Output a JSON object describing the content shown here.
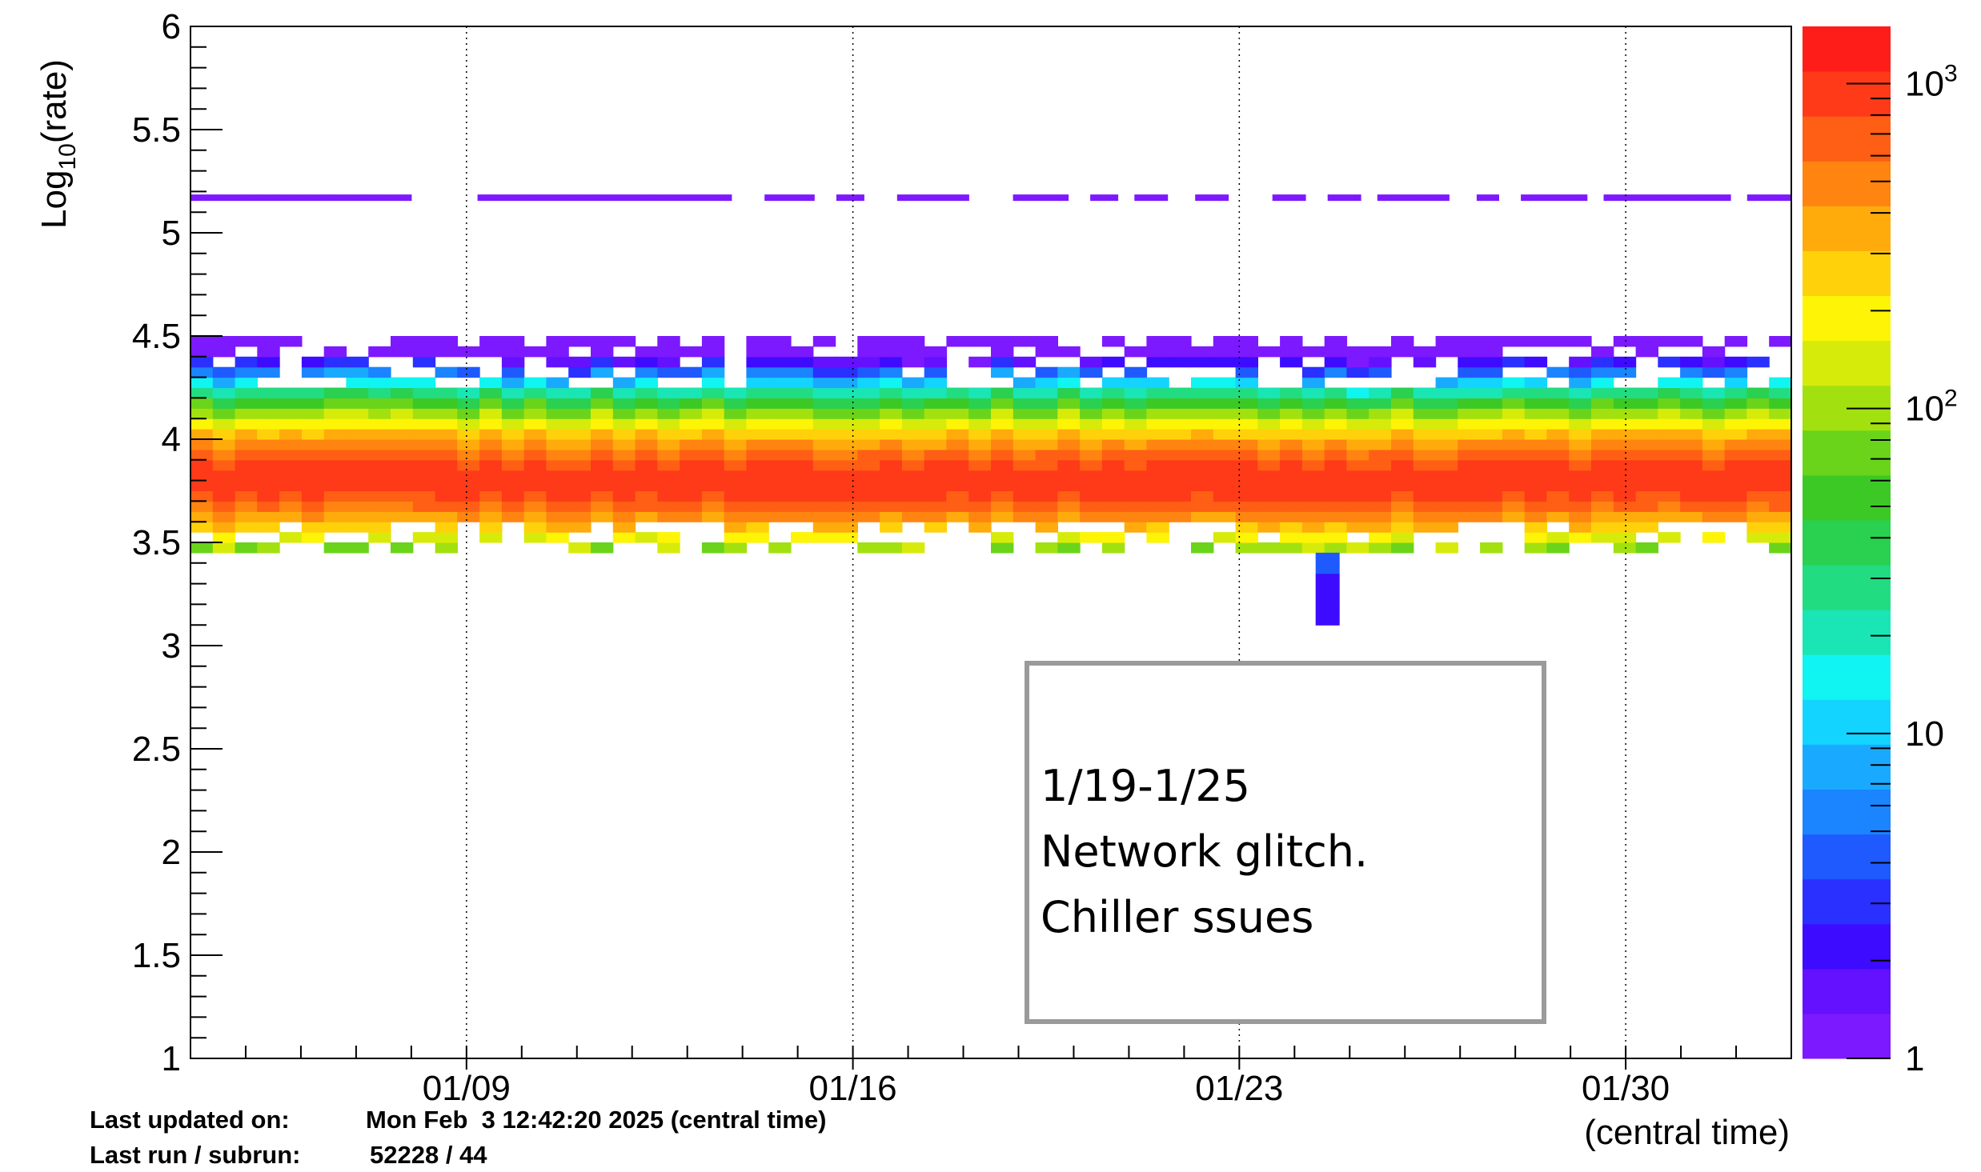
{
  "chart_data": {
    "type": "heatmap",
    "title": "",
    "xlabel": "(central time)",
    "ylabel": "Log10(rate)",
    "ylabel_parts": {
      "base": "Log",
      "sub": "10",
      "rest": "(rate)"
    },
    "x_axis": {
      "type": "date",
      "range": [
        "2025-01-04",
        "2025-02-02"
      ],
      "tick_labels": [
        "01/09",
        "01/16",
        "01/23",
        "01/30"
      ],
      "tick_dates": [
        "2025-01-09",
        "2025-01-16",
        "2025-01-23",
        "2025-01-30"
      ],
      "grid": "vertical dotted at labeled ticks"
    },
    "y_axis": {
      "range": [
        1,
        6
      ],
      "tick_labels": [
        "1",
        "1.5",
        "2",
        "2.5",
        "3",
        "3.5",
        "4",
        "4.5",
        "5",
        "5.5",
        "6"
      ]
    },
    "z_axis": {
      "scale": "log",
      "range": [
        1,
        1500
      ],
      "tick_labels": [
        "1",
        "10",
        "10^2",
        "10^3"
      ],
      "colormap": "rainbow",
      "colors": [
        "#7d19ff",
        "#6311ff",
        "#3d0bff",
        "#2a30ff",
        "#1f5aff",
        "#1b84ff",
        "#19aaff",
        "#13d4ff",
        "#10f5f2",
        "#19e6b4",
        "#22dc82",
        "#2ad050",
        "#3cc926",
        "#6ad41a",
        "#a2e10f",
        "#d7eb0a",
        "#fef405",
        "#ffd10a",
        "#ffab0c",
        "#ff8410",
        "#ff5f14",
        "#ff3a18",
        "#ff1d1a"
      ]
    },
    "series": [
      {
        "name": "",
        "description_value": "main band",
        "y_range": [
          3.45,
          4.48
        ],
        "peak_y": 3.8,
        "peak_count": 1000
      },
      {
        "name": "",
        "description_value": "high line",
        "y": 5.17,
        "count": 1
      }
    ],
    "gaps_high_line": [
      [
        "2025-01-08",
        "2025-01-09.2"
      ],
      [
        "2025-01-13.8",
        "2025-01-14.4"
      ],
      [
        "2025-01-15.3",
        "2025-01-15.7"
      ],
      [
        "2025-01-16.2",
        "2025-01-16.8"
      ],
      [
        "2025-01-18.1",
        "2025-01-18.9"
      ],
      [
        "2025-01-19.9",
        "2025-01-20.3"
      ],
      [
        "2025-01-20.8",
        "2025-01-21.1"
      ],
      [
        "2025-01-21.7",
        "2025-01-22.2"
      ],
      [
        "2025-01-22.8",
        "2025-01-23.6"
      ],
      [
        "2025-01-24.2",
        "2025-01-24.6"
      ],
      [
        "2025-01-25.2",
        "2025-01-25.5"
      ],
      [
        "2025-01-26.8",
        "2025-01-27.3"
      ],
      [
        "2025-01-27.7",
        "2025-01-28.1"
      ],
      [
        "2025-01-29.3",
        "2025-01-29.6"
      ],
      [
        "2025-01-31.9",
        "2025-02-01.2"
      ]
    ],
    "outlier": {
      "date": "2025-01-24.6",
      "y_range": [
        3.1,
        3.4
      ]
    },
    "annotation": [
      "1/19-1/25",
      "Network glitch.",
      "Chiller ssues"
    ]
  },
  "footer": {
    "updated_label": "Last updated on:",
    "updated_value": "Mon Feb  3 12:42:20 2025 (central time)",
    "run_label": "Last run / subrun:",
    "run_value": "52228 / 44"
  }
}
